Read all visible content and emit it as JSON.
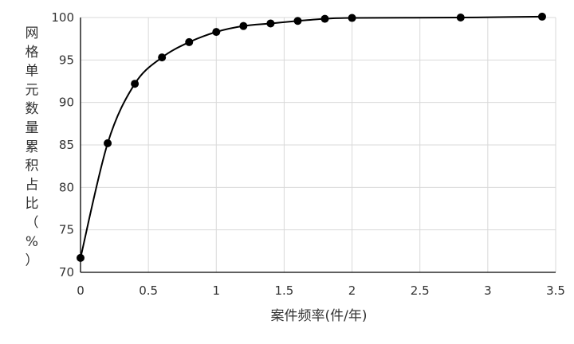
{
  "chart_data": {
    "type": "scatter",
    "title": "",
    "xlabel": "案件频率(件/年)",
    "ylabel": "网格单元数量累积占比（%）",
    "xlim": [
      0,
      3.5
    ],
    "ylim": [
      70,
      100
    ],
    "x_ticks": [
      "0",
      "0.5",
      "1",
      "1.5",
      "2",
      "2.5",
      "3",
      "3.5"
    ],
    "y_ticks": [
      "70",
      "75",
      "80",
      "85",
      "90",
      "95",
      "100"
    ],
    "grid": true,
    "legend": "none",
    "marker_color": "#000000",
    "line_color": "#000000",
    "grid_color": "#d9d9d9",
    "smooth_line": true,
    "series": [
      {
        "x": [
          0,
          0.2,
          0.4,
          0.6,
          0.8,
          1.0,
          1.2,
          1.4,
          1.6,
          1.8,
          2.0,
          2.8,
          3.4
        ],
        "y": [
          71.7,
          85.2,
          92.2,
          95.3,
          97.1,
          98.3,
          99.0,
          99.3,
          99.6,
          99.85,
          99.95,
          100.0,
          100.1
        ]
      }
    ]
  }
}
